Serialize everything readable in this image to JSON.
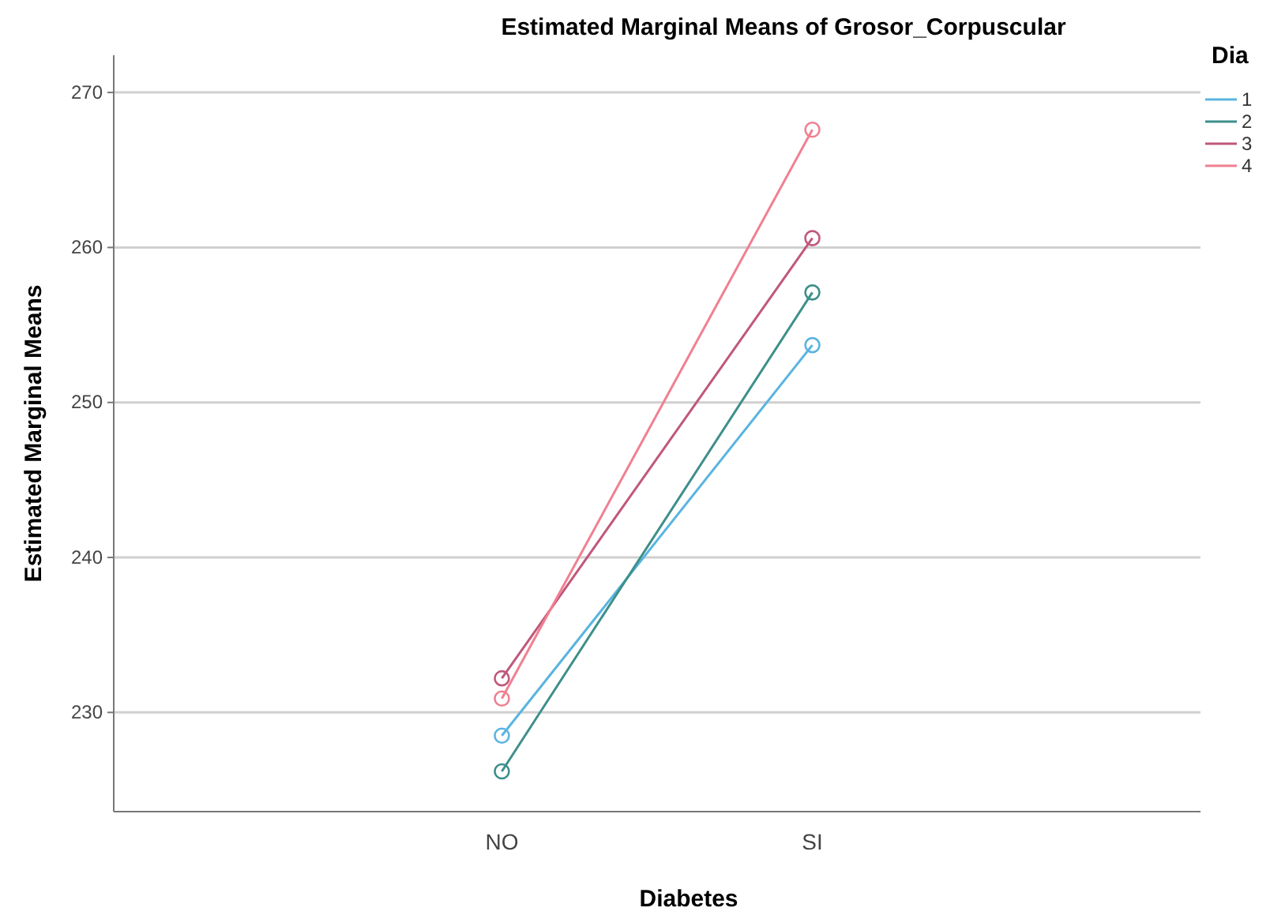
{
  "chart_data": {
    "type": "line",
    "title": "Estimated Marginal Means of Grosor_Corpuscular",
    "xlabel": "Diabetes",
    "ylabel": "Estimated Marginal Means",
    "legend_title": "Dia",
    "categories": [
      "NO",
      "SI"
    ],
    "series": [
      {
        "name": "1",
        "color": "#5ab4e0",
        "values": [
          228.5,
          253.7
        ]
      },
      {
        "name": "2",
        "color": "#3d8f8a",
        "values": [
          226.2,
          257.1
        ]
      },
      {
        "name": "3",
        "color": "#c0587a",
        "values": [
          232.2,
          260.6
        ]
      },
      {
        "name": "4",
        "color": "#f08090",
        "values": [
          230.9,
          267.6
        ]
      }
    ],
    "ylim": [
      223.6,
      272.4
    ],
    "yticks": [
      230,
      240,
      250,
      260,
      270
    ],
    "grid": "y",
    "legend": "top right",
    "marker": "circle",
    "line_style": "solid"
  }
}
